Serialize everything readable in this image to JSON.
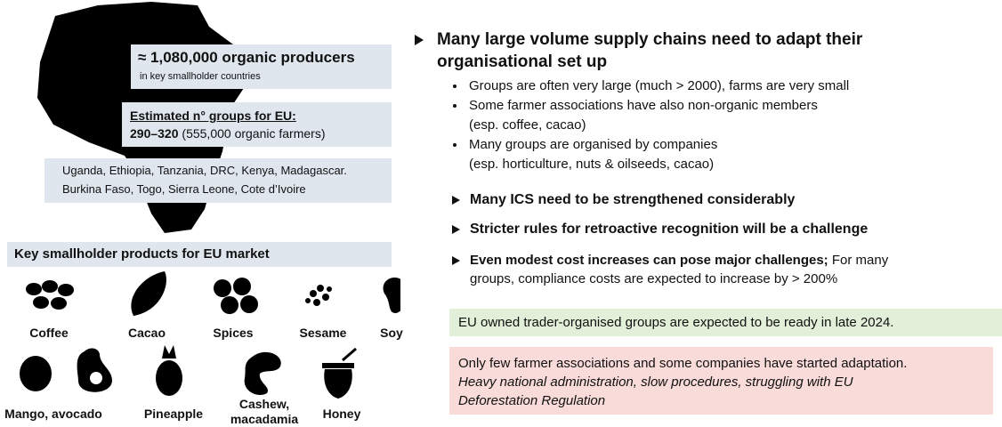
{
  "left": {
    "headline": {
      "main": "≈ 1,080,000 organic producers",
      "sub": "in key smallholder countries"
    },
    "groups": {
      "label": "Estimated n° groups for EU:",
      "range": "290–320",
      "detail": "(555,000 organic farmers)"
    },
    "countries": [
      "Uganda, Ethiopia, Tanzania, DRC, Kenya, Madagascar.",
      "Burkina Faso, Togo, Sierra Leone, Cote d’Ivoire"
    ],
    "products_title": "Key smallholder products for EU market",
    "products": [
      "Coffee",
      "Cacao",
      "Spices",
      "Sesame",
      "Soy",
      "Mango, avocado",
      "Pineapple",
      [
        "Cashew,",
        "macadamia"
      ],
      "Honey"
    ]
  },
  "right": {
    "main_point": [
      "Many large volume supply chains need to adapt their",
      "organisational set up"
    ],
    "sub_bullets": [
      [
        "Groups are often very large (much > 2000), farms are very small"
      ],
      [
        "Some farmer associations have also non-organic members",
        "(esp. coffee, cacao)"
      ],
      [
        "Many groups are organised by companies",
        "(esp. horticulture, nuts & oilseeds, cacao)"
      ]
    ],
    "points": [
      "Many ICS need to be strengthened considerably",
      "Stricter rules for retroactive recognition will be a challenge"
    ],
    "last_point": {
      "bold": "Even modest cost increases can pose major challenges;",
      "rest": [
        "For many",
        "groups, compliance costs are expected to increase by > 200%"
      ]
    },
    "green_note": "EU owned trader-organised groups are expected to be ready in late 2024.",
    "red_note": {
      "line": "Only few farmer associations and some companies have started adaptation.",
      "italic": [
        "Heavy national administration, slow procedures, struggling with EU",
        "Deforestation Regulation"
      ]
    }
  }
}
